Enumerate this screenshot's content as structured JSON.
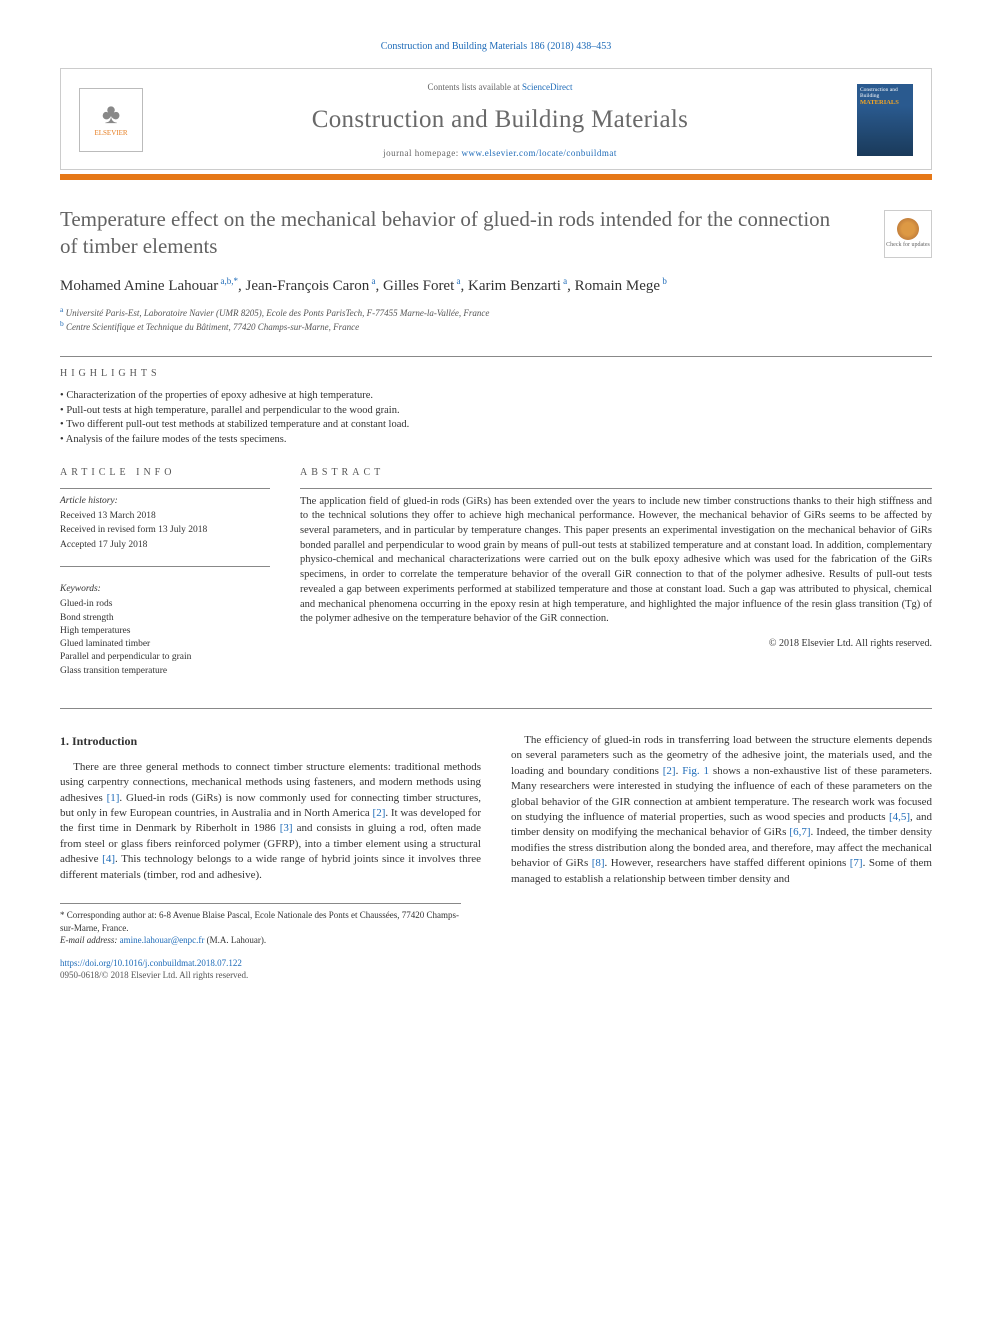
{
  "journal_ref": "Construction and Building Materials 186 (2018) 438–453",
  "header": {
    "publisher": "ELSEVIER",
    "contents_prefix": "Contents lists available at",
    "contents_link": "ScienceDirect",
    "journal_name": "Construction and Building Materials",
    "homepage_prefix": "journal homepage:",
    "homepage_url": "www.elsevier.com/locate/conbuildmat",
    "cover_line1": "Construction and Building",
    "cover_line2": "MATERIALS"
  },
  "paper": {
    "title": "Temperature effect on the mechanical behavior of glued-in rods intended for the connection of timber elements",
    "check_badge": "Check for updates"
  },
  "authors_html": "Mohamed Amine Lahouar<sup> a,b,*</sup>, Jean-François Caron<sup> a</sup>, Gilles Foret<sup> a</sup>, Karim Benzarti<sup> a</sup>, Romain Mege<sup> b</sup>",
  "affiliations": [
    {
      "sup": "a",
      "text": "Université Paris-Est, Laboratoire Navier (UMR 8205), Ecole des Ponts ParisTech, F-77455 Marne-la-Vallée, France"
    },
    {
      "sup": "b",
      "text": "Centre Scientifique et Technique du Bâtiment, 77420 Champs-sur-Marne, France"
    }
  ],
  "labels": {
    "highlights": "HIGHLIGHTS",
    "article_info": "ARTICLE INFO",
    "abstract": "ABSTRACT"
  },
  "highlights": [
    "Characterization of the properties of epoxy adhesive at high temperature.",
    "Pull-out tests at high temperature, parallel and perpendicular to the wood grain.",
    "Two different pull-out test methods at stabilized temperature and at constant load.",
    "Analysis of the failure modes of the tests specimens."
  ],
  "article_info": {
    "history_label": "Article history:",
    "received": "Received 13 March 2018",
    "revised": "Received in revised form 13 July 2018",
    "accepted": "Accepted 17 July 2018",
    "keywords_label": "Keywords:",
    "keywords": [
      "Glued-in rods",
      "Bond strength",
      "High temperatures",
      "Glued laminated timber",
      "Parallel and perpendicular to grain",
      "Glass transition temperature"
    ]
  },
  "abstract": {
    "text": "The application field of glued-in rods (GiRs) has been extended over the years to include new timber constructions thanks to their high stiffness and to the technical solutions they offer to achieve high mechanical performance. However, the mechanical behavior of GiRs seems to be affected by several parameters, and in particular by temperature changes. This paper presents an experimental investigation on the mechanical behavior of GiRs bonded parallel and perpendicular to wood grain by means of pull-out tests at stabilized temperature and at constant load. In addition, complementary physico-chemical and mechanical characterizations were carried out on the bulk epoxy adhesive which was used for the fabrication of the GiRs specimens, in order to correlate the temperature behavior of the overall GiR connection to that of the polymer adhesive. Results of pull-out tests revealed a gap between experiments performed at stabilized temperature and those at constant load. Such a gap was attributed to physical, chemical and mechanical phenomena occurring in the epoxy resin at high temperature, and highlighted the major influence of the resin glass transition (Tg) of the polymer adhesive on the temperature behavior of the GiR connection.",
    "copyright": "© 2018 Elsevier Ltd. All rights reserved."
  },
  "intro": {
    "heading": "1. Introduction",
    "para1_a": "There are three general methods to connect timber structure elements: traditional methods using carpentry connections, mechanical methods using fasteners, and modern methods using adhesives ",
    "ref1": "[1]",
    "para1_b": ". Glued-in rods (GiRs) is now commonly used for connecting timber structures, but only in few European countries, in Australia and in North America ",
    "ref2": "[2]",
    "para1_c": ". It was developed for the first time in Denmark by Riberholt in 1986 ",
    "ref3": "[3]",
    "para1_d": " and consists in gluing a rod, often made from steel or glass fibers reinforced polymer (GFRP), into a timber element using a structural adhesive ",
    "ref4": "[4]",
    "para1_e": ". This technology belongs to a wide range of hybrid joints since it involves three different materials (timber, rod and adhesive).",
    "para2_a": "The efficiency of glued-in rods in transferring load between the structure elements depends on several parameters such as the geometry of the adhesive joint, the materials used, and the loading and boundary conditions ",
    "ref2b": "[2]",
    "para2_b": ". ",
    "fig1": "Fig. 1",
    "para2_c": " shows a non-exhaustive list of these parameters. Many researchers were interested in studying the influence of each of these parameters on the global behavior of the GIR connection at ambient temperature. The research work was focused on studying the influence of material properties, such as wood species and products ",
    "ref45": "[4,5]",
    "para2_d": ", and timber density on modifying the mechanical behavior of GiRs ",
    "ref67": "[6,7]",
    "para2_e": ". Indeed, the timber density modifies the stress distribution along the bonded area, and therefore, may affect the mechanical behavior of GiRs ",
    "ref8": "[8]",
    "para2_f": ". However, researchers have staffed different opinions ",
    "ref7": "[7]",
    "para2_g": ". Some of them managed to establish a relationship between timber density and"
  },
  "footnote": {
    "corr": "* Corresponding author at: 6-8 Avenue Blaise Pascal, Ecole Nationale des Ponts et Chaussées, 77420 Champs-sur-Marne, France.",
    "email_label": "E-mail address:",
    "email": "amine.lahouar@enpc.fr",
    "email_suffix": "(M.A. Lahouar)."
  },
  "bottom": {
    "doi": "https://doi.org/10.1016/j.conbuildmat.2018.07.122",
    "issn": "0950-0618/© 2018 Elsevier Ltd. All rights reserved."
  },
  "colors": {
    "link": "#1e6bb8",
    "accent": "#e67817",
    "text": "#333333",
    "muted": "#696969"
  }
}
